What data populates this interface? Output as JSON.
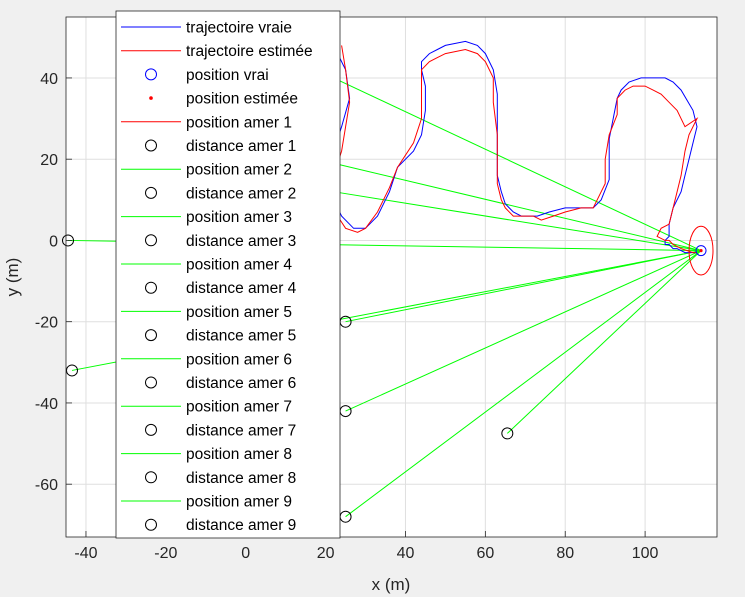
{
  "chart_data": {
    "type": "line",
    "xlabel": "x (m)",
    "ylabel": "y (m)",
    "xlim": [
      -45,
      118
    ],
    "ylim": [
      -73,
      55
    ],
    "xticks": [
      -40,
      -20,
      0,
      20,
      40,
      60,
      80,
      100
    ],
    "yticks": [
      -60,
      -40,
      -20,
      0,
      20,
      40
    ],
    "grid": true,
    "legend_position": "top-left, inside",
    "colors": {
      "true_path": "#0000ff",
      "est_path": "#ff0000",
      "sight": "#00ff00",
      "landmark": "#000000"
    },
    "series": [
      {
        "name": "trajectoire vraie",
        "color": "#0000ff",
        "x": [
          20,
          23,
          25,
          26,
          24,
          22,
          21,
          22,
          24,
          27,
          30,
          33,
          36,
          38,
          42,
          44,
          45,
          45,
          44,
          44,
          46,
          48,
          50,
          55,
          58,
          60,
          62,
          63,
          63,
          63,
          63,
          64,
          65,
          67,
          69,
          71,
          73,
          76,
          80,
          84,
          87,
          89,
          91,
          91,
          91,
          92,
          93,
          94,
          96,
          99,
          101,
          103,
          105,
          107,
          109,
          112,
          113,
          112,
          111,
          110,
          109,
          107,
          106,
          106,
          105,
          105,
          106,
          107,
          108,
          110,
          113
        ],
        "y": [
          48,
          46,
          42,
          35,
          28,
          22,
          16,
          10,
          6,
          3,
          3,
          6,
          12,
          18,
          22,
          26,
          32,
          38,
          42,
          44,
          46,
          47,
          48,
          49,
          48,
          46,
          42,
          36,
          30,
          22,
          16,
          12,
          9,
          7,
          6,
          6,
          6,
          7,
          8,
          8,
          8,
          10,
          15,
          20,
          25,
          30,
          35,
          37,
          39,
          40,
          40,
          40,
          40,
          39,
          37,
          32,
          28,
          24,
          20,
          16,
          12,
          8,
          4,
          1,
          0,
          -1,
          -1,
          -2,
          -2,
          -3,
          -3
        ]
      },
      {
        "name": "trajectoire estimée",
        "color": "#ff0000",
        "x": [
          24,
          25,
          26,
          25,
          24,
          22,
          22,
          23,
          25,
          28,
          30,
          33,
          36,
          38,
          42,
          44,
          44,
          44,
          46,
          48,
          50,
          55,
          58,
          60,
          62,
          62,
          63,
          63,
          63,
          64,
          65,
          67,
          70,
          72,
          74,
          77,
          80,
          84,
          87,
          88,
          90,
          90,
          91,
          93,
          93,
          95,
          97,
          100,
          102,
          104,
          106,
          108,
          110,
          113,
          111,
          110,
          109,
          108,
          107,
          106,
          104,
          103,
          105,
          106,
          107,
          109,
          112,
          113
        ],
        "y": [
          48,
          42,
          34,
          28,
          22,
          16,
          10,
          6,
          3,
          2,
          3,
          7,
          13,
          18,
          24,
          30,
          36,
          42,
          44,
          45,
          46,
          47,
          46,
          44,
          40,
          34,
          26,
          20,
          14,
          10,
          8,
          6,
          6,
          6,
          5,
          6,
          7,
          8,
          8,
          10,
          14,
          20,
          26,
          31,
          35,
          37,
          38,
          38,
          37,
          36,
          34,
          32,
          28,
          30,
          26,
          22,
          16,
          12,
          8,
          4,
          3,
          1,
          0,
          0,
          -1,
          -2,
          -3,
          -3
        ]
      }
    ],
    "robot": {
      "x": 114,
      "y": -2.5,
      "uncertainty_ellipse": {
        "rx": 3,
        "ry": 6
      }
    },
    "landmarks": [
      {
        "x": -44.5,
        "y": 0
      },
      {
        "x": -43.5,
        "y": -32
      },
      {
        "x": 65.5,
        "y": -47.5
      },
      {
        "x": 25,
        "y": -20
      },
      {
        "x": 25,
        "y": -42
      },
      {
        "x": 25,
        "y": -68
      },
      {
        "x": 22,
        "y": 40
      },
      {
        "x": 22,
        "y": 19
      },
      {
        "x": 22,
        "y": 12
      }
    ],
    "legend": [
      {
        "label": "trajectoire vraie",
        "kind": "line",
        "color": "#0000ff"
      },
      {
        "label": "trajectoire estimée",
        "kind": "line",
        "color": "#ff0000"
      },
      {
        "label": "position vrai",
        "kind": "circle",
        "color": "#0000ff"
      },
      {
        "label": "position estimée",
        "kind": "dot",
        "color": "#ff0000"
      },
      {
        "label": "position amer 1",
        "kind": "line",
        "color": "#ff0000"
      },
      {
        "label": "distance amer 1",
        "kind": "circle",
        "color": "#000000"
      },
      {
        "label": "position amer 2",
        "kind": "line",
        "color": "#00ff00"
      },
      {
        "label": "distance amer 2",
        "kind": "circle",
        "color": "#000000"
      },
      {
        "label": "position amer 3",
        "kind": "line",
        "color": "#00ff00"
      },
      {
        "label": "distance amer 3",
        "kind": "circle",
        "color": "#000000"
      },
      {
        "label": "position amer 4",
        "kind": "line",
        "color": "#00ff00"
      },
      {
        "label": "distance amer 4",
        "kind": "circle",
        "color": "#000000"
      },
      {
        "label": "position amer 5",
        "kind": "line",
        "color": "#00ff00"
      },
      {
        "label": "distance amer 5",
        "kind": "circle",
        "color": "#000000"
      },
      {
        "label": "position amer 6",
        "kind": "line",
        "color": "#00ff00"
      },
      {
        "label": "distance amer 6",
        "kind": "circle",
        "color": "#000000"
      },
      {
        "label": "position amer 7",
        "kind": "line",
        "color": "#00ff00"
      },
      {
        "label": "distance amer 7",
        "kind": "circle",
        "color": "#000000"
      },
      {
        "label": "position amer 8",
        "kind": "line",
        "color": "#00ff00"
      },
      {
        "label": "distance amer 8",
        "kind": "circle",
        "color": "#000000"
      },
      {
        "label": "position amer 9",
        "kind": "line",
        "color": "#00ff00"
      },
      {
        "label": "distance amer 9",
        "kind": "circle",
        "color": "#000000"
      }
    ]
  }
}
